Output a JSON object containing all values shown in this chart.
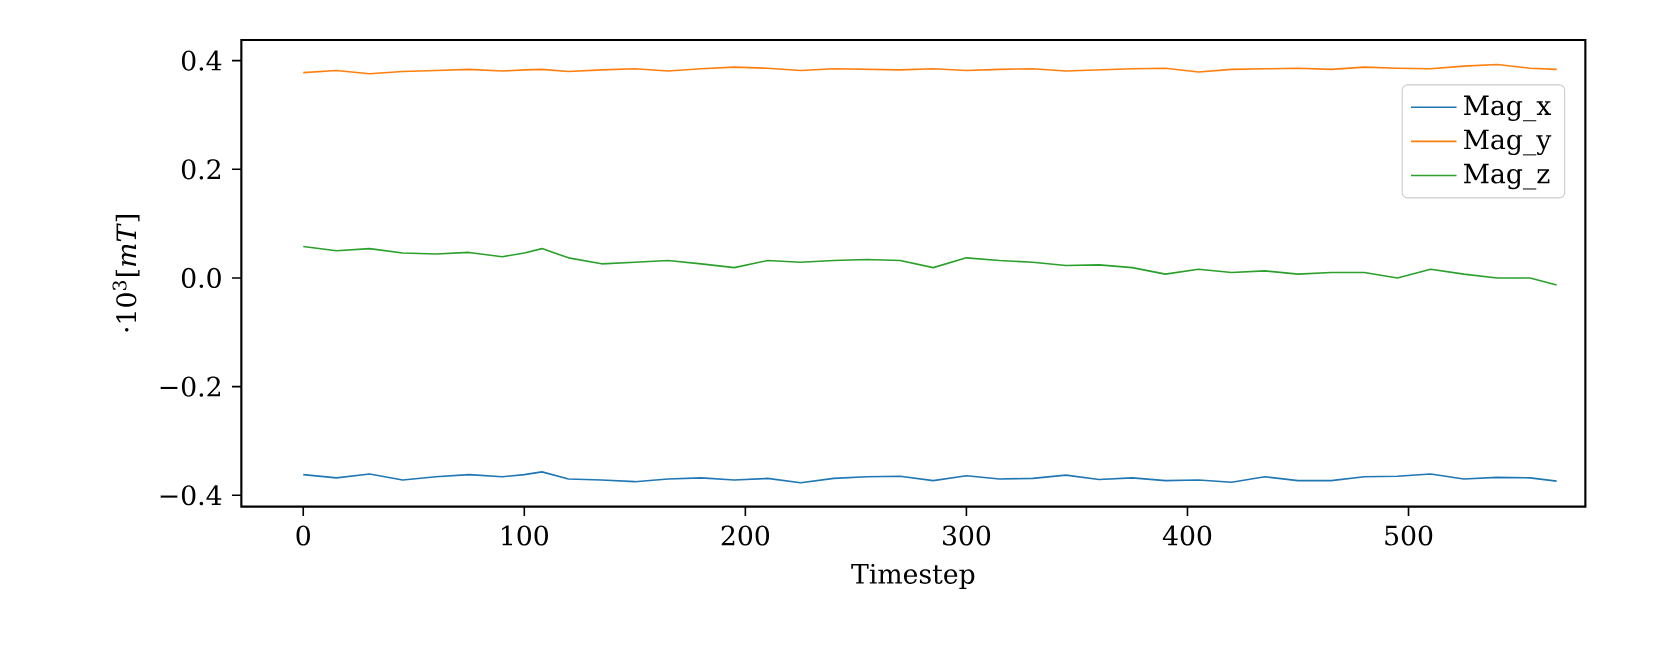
{
  "chart_data": {
    "type": "line",
    "xlabel": "Timestep",
    "ylabel": "·10$^{3}$[*mT*]",
    "x": [
      0,
      15,
      30,
      45,
      60,
      75,
      90,
      100,
      108,
      120,
      135,
      150,
      165,
      180,
      195,
      210,
      225,
      240,
      255,
      270,
      285,
      300,
      315,
      330,
      345,
      360,
      375,
      390,
      405,
      420,
      435,
      450,
      465,
      480,
      495,
      510,
      525,
      540,
      555,
      567
    ],
    "xlim": [
      -28,
      580
    ],
    "ylim": [
      -0.421,
      0.438
    ],
    "xticks": [
      0,
      100,
      200,
      300,
      400,
      500
    ],
    "yticks": [
      {
        "value": -0.4,
        "label": "−0.4"
      },
      {
        "value": -0.2,
        "label": "−0.2"
      },
      {
        "value": 0.0,
        "label": "0.0"
      },
      0.2,
      0.4
    ],
    "legend": "top right",
    "series": [
      {
        "name": "Mag_x",
        "color": "#1f77b4",
        "values": [
          -0.362,
          -0.368,
          -0.361,
          -0.372,
          -0.366,
          -0.362,
          -0.366,
          -0.362,
          -0.357,
          -0.37,
          -0.372,
          -0.375,
          -0.37,
          -0.368,
          -0.372,
          -0.369,
          -0.377,
          -0.369,
          -0.366,
          -0.365,
          -0.373,
          -0.364,
          -0.37,
          -0.369,
          -0.363,
          -0.371,
          -0.368,
          -0.373,
          -0.372,
          -0.376,
          -0.366,
          -0.373,
          -0.373,
          -0.366,
          -0.365,
          -0.361,
          -0.37,
          -0.367,
          -0.368,
          -0.374
        ]
      },
      {
        "name": "Mag_y",
        "color": "#ff7f0e",
        "values": [
          0.378,
          0.382,
          0.376,
          0.38,
          0.382,
          0.384,
          0.381,
          0.383,
          0.384,
          0.38,
          0.383,
          0.385,
          0.381,
          0.385,
          0.388,
          0.386,
          0.382,
          0.385,
          0.384,
          0.383,
          0.385,
          0.382,
          0.384,
          0.385,
          0.381,
          0.383,
          0.385,
          0.386,
          0.379,
          0.384,
          0.385,
          0.386,
          0.384,
          0.388,
          0.386,
          0.385,
          0.39,
          0.393,
          0.386,
          0.384
        ]
      },
      {
        "name": "Mag_z",
        "color": "#2ca02c",
        "values": [
          0.058,
          0.05,
          0.054,
          0.046,
          0.044,
          0.047,
          0.039,
          0.046,
          0.054,
          0.037,
          0.026,
          0.029,
          0.032,
          0.026,
          0.019,
          0.032,
          0.029,
          0.032,
          0.034,
          0.032,
          0.019,
          0.037,
          0.032,
          0.029,
          0.023,
          0.024,
          0.019,
          0.007,
          0.016,
          0.01,
          0.013,
          0.007,
          0.01,
          0.01,
          0.0,
          0.016,
          0.007,
          0.0,
          0.0,
          -0.013
        ]
      }
    ]
  }
}
